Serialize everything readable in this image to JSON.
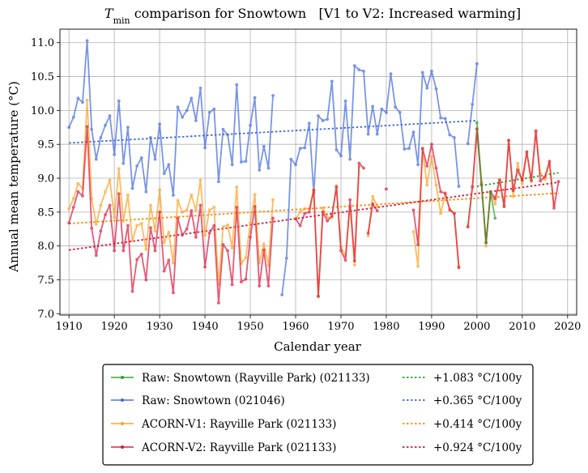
{
  "chart_data": {
    "type": "line",
    "title_prefix": "T",
    "title_subscript": "min",
    "title": " comparison for Snowtown   [V1 to V2: Increased warming]",
    "xlabel": "Calendar year",
    "ylabel": "Annual mean temperature (°C)",
    "xlim": [
      1908,
      2022
    ],
    "ylim": [
      6.98,
      11.2
    ],
    "xticks": [
      1910,
      1920,
      1930,
      1940,
      1950,
      1960,
      1970,
      1980,
      1990,
      2000,
      2010,
      2020
    ],
    "yticks": [
      7.0,
      7.5,
      8.0,
      8.5,
      9.0,
      9.5,
      10.0,
      10.5,
      11.0
    ],
    "ytick_labels": [
      "7.0",
      "7.5",
      "8.0",
      "8.5",
      "9.0",
      "9.5",
      "10.0",
      "10.5",
      "11.0"
    ],
    "grid": true,
    "legend_position": "bottom-outside",
    "series": [
      {
        "name": "Raw: Snowtown (Rayville Park) (021133)",
        "color": "#2ca02c",
        "segments": [
          {
            "x": [
              2000,
              2001,
              2002,
              2003,
              2004
            ],
            "y": [
              9.82,
              8.92,
              8.05,
              8.78,
              8.41
            ]
          }
        ]
      },
      {
        "name": "Raw: Snowtown (021046)",
        "color": "#4169e1",
        "segments": [
          {
            "x": [
              1910,
              1911,
              1912,
              1913,
              1914,
              1915,
              1916,
              1917,
              1918,
              1919,
              1920,
              1921,
              1922,
              1923,
              1924,
              1925,
              1926,
              1927,
              1928,
              1929,
              1930,
              1931,
              1932,
              1933,
              1934,
              1935,
              1936,
              1937,
              1938,
              1939,
              1940,
              1941,
              1942,
              1943,
              1944,
              1945,
              1946,
              1947,
              1948,
              1949,
              1950,
              1951,
              1952,
              1953,
              1954,
              1955
            ],
            "y": [
              9.75,
              9.9,
              10.18,
              10.12,
              11.03,
              9.72,
              9.28,
              9.6,
              9.78,
              9.92,
              9.35,
              10.14,
              9.22,
              9.75,
              8.85,
              9.18,
              9.3,
              8.8,
              9.6,
              9.28,
              9.8,
              9.07,
              9.2,
              8.75,
              10.05,
              9.9,
              10.0,
              10.18,
              9.85,
              10.33,
              9.45,
              9.97,
              10.02,
              8.95,
              9.72,
              9.64,
              9.2,
              10.38,
              9.24,
              9.25,
              9.78,
              10.19,
              9.12,
              9.47,
              9.15,
              10.22
            ]
          },
          {
            "x": [
              1957,
              1958,
              1959,
              1960,
              1961,
              1962,
              1963,
              1964,
              1965,
              1966,
              1967,
              1968,
              1969,
              1970,
              1971,
              1972,
              1973,
              1974,
              1975,
              1976,
              1977,
              1978,
              1979,
              1980,
              1981,
              1982,
              1983,
              1984,
              1985,
              1986,
              1987,
              1988,
              1989,
              1990,
              1991,
              1992,
              1993,
              1994,
              1995,
              1996
            ],
            "y": [
              7.28,
              7.82,
              9.28,
              9.2,
              9.44,
              9.45,
              9.81,
              8.78,
              9.92,
              9.85,
              9.87,
              10.43,
              9.42,
              9.33,
              10.14,
              9.28,
              10.66,
              10.6,
              10.58,
              9.65,
              10.06,
              9.65,
              10.02,
              9.97,
              10.54,
              10.05,
              9.97,
              9.43,
              9.44,
              9.68,
              9.2,
              10.56,
              10.33,
              10.58,
              10.32,
              9.89,
              9.88,
              9.64,
              9.6,
              8.88
            ]
          },
          {
            "x": [
              1998,
              1999,
              2000
            ],
            "y": [
              9.51,
              10.09,
              10.69
            ]
          }
        ]
      },
      {
        "name": "ACORN-V1: Rayville Park (021133)",
        "color": "#ff9f1c",
        "segments": [
          {
            "x": [
              1910,
              1911,
              1912,
              1913,
              1914,
              1915,
              1916,
              1917,
              1918,
              1919,
              1920,
              1921,
              1922,
              1923,
              1924,
              1925,
              1926,
              1927,
              1928,
              1929,
              1930,
              1931,
              1932,
              1933,
              1934,
              1935,
              1936,
              1937,
              1938,
              1939,
              1940,
              1941,
              1942,
              1943,
              1944,
              1945,
              1946,
              1947,
              1948,
              1949,
              1950,
              1951,
              1952,
              1953,
              1954,
              1955
            ],
            "y": [
              8.55,
              8.7,
              8.92,
              8.85,
              10.15,
              8.7,
              8.32,
              8.6,
              8.8,
              8.97,
              8.42,
              9.14,
              8.37,
              8.75,
              8.08,
              8.3,
              8.33,
              7.95,
              8.6,
              8.22,
              8.83,
              8.05,
              8.2,
              7.75,
              8.67,
              8.5,
              8.53,
              8.75,
              8.53,
              8.97,
              8.16,
              8.53,
              8.57,
              7.43,
              8.28,
              8.31,
              7.97,
              8.87,
              7.74,
              7.83,
              8.34,
              8.76,
              7.75,
              8.03,
              7.71,
              8.68
            ]
          },
          {
            "x": [
              1960,
              1961,
              1962,
              1963,
              1964,
              1965,
              1966,
              1967,
              1968,
              1969,
              1970,
              1971,
              1972,
              1973,
              1974
            ],
            "y": [
              8.4,
              8.5,
              8.55,
              8.55,
              8.84,
              7.25,
              8.56,
              8.42,
              8.42,
              8.89,
              7.98,
              7.86,
              8.58,
              7.72,
              9.17
            ]
          },
          {
            "x": [
              1976,
              1977,
              1978
            ],
            "y": [
              8.15,
              8.73,
              8.58
            ]
          },
          {
            "x": [
              1986,
              1987,
              1988,
              1989,
              1990,
              1991,
              1992,
              1993,
              1994,
              1995,
              1996
            ],
            "y": [
              8.21,
              7.7,
              9.43,
              8.9,
              9.32,
              8.9,
              8.48,
              8.76,
              8.55,
              8.48,
              7.7
            ]
          },
          {
            "x": [
              1998,
              1999,
              2000,
              2001,
              2002,
              2003,
              2004,
              2005,
              2006,
              2007,
              2008,
              2009,
              2010,
              2011,
              2012,
              2013,
              2014,
              2015,
              2016,
              2017
            ],
            "y": [
              8.3,
              8.88,
              9.72,
              8.95,
              8.0,
              8.8,
              8.62,
              8.98,
              8.6,
              9.55,
              8.73,
              9.22,
              8.92,
              9.37,
              8.95,
              9.68,
              9.07,
              8.98,
              9.22,
              8.6
            ]
          }
        ]
      },
      {
        "name": "ACORN-V2: Rayville Park (021133)",
        "color": "#dc143c",
        "segments": [
          {
            "x": [
              1910,
              1911,
              1912,
              1913,
              1914,
              1915,
              1916,
              1917,
              1918,
              1919,
              1920,
              1921,
              1922,
              1923,
              1924,
              1925,
              1926,
              1927,
              1928,
              1929,
              1930,
              1931,
              1932,
              1933,
              1934,
              1935,
              1936,
              1937,
              1938,
              1939,
              1940,
              1941,
              1942,
              1943,
              1944,
              1945,
              1946,
              1947,
              1948,
              1949,
              1950,
              1951,
              1952,
              1953,
              1954,
              1955
            ],
            "y": [
              8.34,
              8.57,
              8.8,
              8.74,
              9.76,
              8.26,
              7.86,
              8.22,
              8.46,
              8.6,
              7.93,
              8.77,
              7.93,
              8.3,
              7.33,
              7.8,
              7.88,
              7.5,
              8.27,
              7.93,
              8.5,
              7.63,
              7.79,
              7.31,
              8.41,
              8.16,
              8.25,
              8.52,
              8.13,
              8.6,
              7.69,
              8.19,
              8.3,
              7.16,
              8.02,
              7.93,
              7.43,
              8.57,
              7.47,
              7.51,
              8.13,
              8.58,
              7.41,
              7.94,
              7.41,
              8.41
            ]
          },
          {
            "x": [
              1960,
              1961,
              1962,
              1963,
              1964,
              1965,
              1966,
              1967,
              1968,
              1969,
              1970,
              1971,
              1972,
              1973,
              1974
            ],
            "y": [
              8.4,
              8.3,
              8.48,
              8.5,
              8.82,
              7.26,
              8.5,
              8.37,
              8.44,
              8.87,
              7.93,
              7.79,
              8.68,
              7.78,
              9.22
            ]
          },
          {
            "x": [
              1974,
              1975
            ],
            "y": [
              9.22,
              9.15
            ]
          },
          {
            "x": [
              1976,
              1977,
              1978
            ],
            "y": [
              8.19,
              8.62,
              8.52
            ]
          },
          {
            "x": [
              1980
            ],
            "y": [
              8.84
            ]
          },
          {
            "x": [
              1986,
              1987,
              1988,
              1989,
              1990,
              1991,
              1992,
              1993,
              1994,
              1995,
              1996
            ],
            "y": [
              8.53,
              8.02,
              9.44,
              9.18,
              9.5,
              9.15,
              8.8,
              8.78,
              8.53,
              8.48,
              7.68
            ]
          },
          {
            "x": [
              1998,
              1999,
              2000,
              2001,
              2002,
              2003,
              2004,
              2005,
              2006,
              2007,
              2008,
              2009,
              2010,
              2011,
              2012,
              2013,
              2014,
              2015,
              2016,
              2017,
              2018
            ],
            "y": [
              8.28,
              8.87,
              9.73,
              8.9,
              8.05,
              8.8,
              8.7,
              8.97,
              8.58,
              9.56,
              8.82,
              9.12,
              8.97,
              9.39,
              8.97,
              9.7,
              8.96,
              9.02,
              9.25,
              8.56,
              8.95
            ]
          }
        ]
      }
    ],
    "trendlines": [
      {
        "label": "+1.083 °C/100y",
        "color": "#2ca02c",
        "x": [
          2000,
          2018
        ],
        "y": [
          8.88,
          9.08
        ]
      },
      {
        "label": "+0.365 °C/100y",
        "color": "#4169e1",
        "x": [
          1910,
          2000
        ],
        "y": [
          9.52,
          9.85
        ]
      },
      {
        "label": "+0.414 °C/100y",
        "color": "#ff8c00",
        "x": [
          1910,
          2018
        ],
        "y": [
          8.33,
          8.78
        ]
      },
      {
        "label": "+0.924 °C/100y",
        "color": "#dc143c",
        "x": [
          1910,
          2018
        ],
        "y": [
          7.94,
          8.94
        ]
      }
    ]
  },
  "legend": {
    "entries": [
      {
        "label": "Raw: Snowtown (Rayville Park) (021133)",
        "color": "#2ca02c",
        "kind": "line-marker"
      },
      {
        "label": "+1.083 °C/100y",
        "color": "#2ca02c",
        "kind": "dotted"
      },
      {
        "label": "Raw: Snowtown (021046)",
        "color": "#4169e1",
        "kind": "line-marker"
      },
      {
        "label": "+0.365 °C/100y",
        "color": "#4169e1",
        "kind": "dotted"
      },
      {
        "label": "ACORN-V1: Rayville Park (021133)",
        "color": "#ff9f1c",
        "kind": "line-marker"
      },
      {
        "label": "+0.414 °C/100y",
        "color": "#ff8c00",
        "kind": "dotted"
      },
      {
        "label": "ACORN-V2: Rayville Park (021133)",
        "color": "#dc143c",
        "kind": "line-marker"
      },
      {
        "label": "+0.924 °C/100y",
        "color": "#dc143c",
        "kind": "dotted"
      }
    ]
  }
}
